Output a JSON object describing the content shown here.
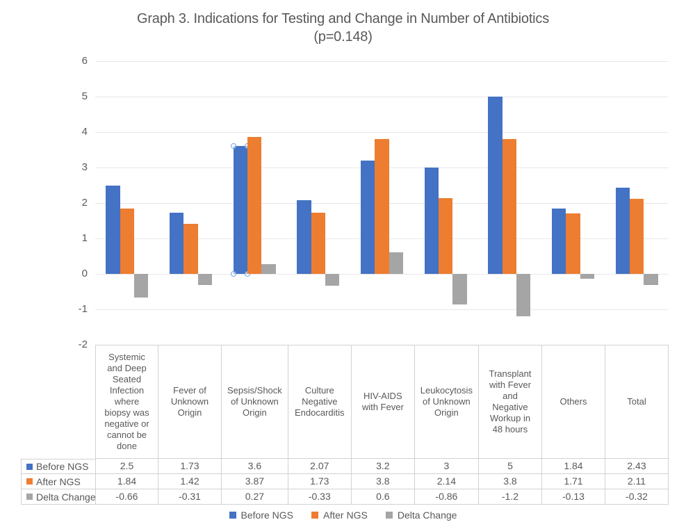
{
  "chart_data": {
    "type": "bar",
    "title": "Graph 3. Indications for Testing and Change in Number of Antibiotics",
    "subtitle": "(p=0.148)",
    "categories": [
      "Systemic and Deep Seated Infection where biopsy was negative or cannot be done",
      "Fever of Unknown Origin",
      "Sepsis/Shock of Unknown Origin",
      "Culture Negative Endocarditis",
      "HIV-AIDS with Fever",
      "Leukocytosis of Unknown Origin",
      "Transplant with Fever and Negative Workup in 48 hours",
      "Others",
      "Total"
    ],
    "series": [
      {
        "name": "Before NGS",
        "color": "#4472C4",
        "values": [
          2.5,
          1.73,
          3.6,
          2.07,
          3.2,
          3,
          5,
          1.84,
          2.43
        ]
      },
      {
        "name": "After NGS",
        "color": "#ED7D31",
        "values": [
          1.84,
          1.42,
          3.87,
          1.73,
          3.8,
          2.14,
          3.8,
          1.71,
          2.11
        ]
      },
      {
        "name": "Delta Change",
        "color": "#A5A5A5",
        "values": [
          -0.66,
          -0.31,
          0.27,
          -0.33,
          0.6,
          -0.86,
          -1.2,
          -0.13,
          -0.32
        ]
      }
    ],
    "ylim": [
      -2,
      6
    ],
    "ytick_step": 1,
    "grid": true,
    "legend_position": "bottom",
    "data_table_shown": true,
    "selected_point": {
      "series": "Before NGS",
      "category_index": 2
    },
    "colors": {
      "text": "#595959",
      "gridline": "#E7E7E7",
      "table_border": "#D2D2D2",
      "selection_handle": "#6FA7DC"
    }
  }
}
